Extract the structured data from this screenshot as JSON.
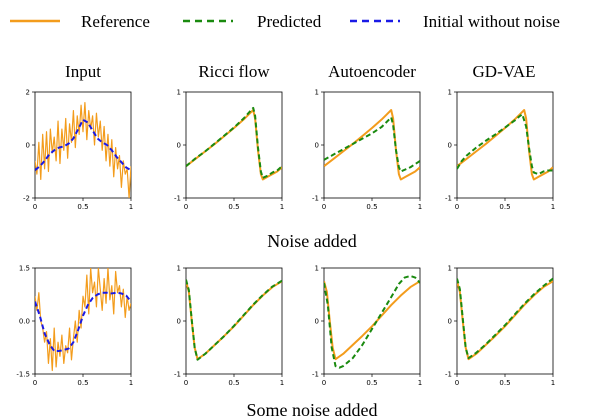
{
  "legend": {
    "entries": [
      {
        "label": "Reference",
        "color": "#f39c1c",
        "dash": "solid"
      },
      {
        "label": "Predicted",
        "color": "#1a8a0f",
        "dash": "dashed"
      },
      {
        "label": "Initial without noise",
        "color": "#1a1ae6",
        "dash": "dashed"
      }
    ]
  },
  "column_titles": [
    "Input",
    "Ricci flow",
    "Autoencoder",
    "GD-VAE"
  ],
  "row_titles": [
    "Noise added",
    "Some noise added"
  ],
  "chart_data": {
    "type": "line",
    "xlim": [
      0,
      1
    ],
    "x_ticks": [
      0,
      0.5,
      1
    ],
    "x_tick_labels": [
      "0",
      "0.5",
      "1"
    ],
    "rows": [
      {
        "title": "Noise added",
        "input": {
          "ylim": [
            -2,
            2
          ],
          "y_ticks": [
            -2,
            0,
            2
          ],
          "y_tick_labels": [
            "-2",
            "0",
            "2"
          ],
          "noisy": {
            "x": [
              0,
              0.02,
              0.04,
              0.06,
              0.08,
              0.1,
              0.12,
              0.14,
              0.16,
              0.18,
              0.2,
              0.22,
              0.24,
              0.26,
              0.28,
              0.3,
              0.32,
              0.34,
              0.36,
              0.38,
              0.4,
              0.42,
              0.44,
              0.46,
              0.48,
              0.5,
              0.52,
              0.54,
              0.56,
              0.58,
              0.6,
              0.62,
              0.64,
              0.66,
              0.68,
              0.7,
              0.72,
              0.74,
              0.76,
              0.78,
              0.8,
              0.82,
              0.84,
              0.86,
              0.88,
              0.9,
              0.92,
              0.94,
              0.96,
              0.98,
              1
            ],
            "y": [
              -0.6,
              -1.1,
              0.1,
              -1.3,
              0.4,
              -0.9,
              0.5,
              -1.0,
              0.6,
              -0.3,
              0.3,
              -0.6,
              0.9,
              -0.7,
              0.6,
              -0.2,
              1.0,
              -0.5,
              0.8,
              0.1,
              1.3,
              -0.1,
              1.1,
              0.4,
              1.5,
              0.5,
              1.6,
              0.2,
              1.3,
              0.6,
              1.1,
              0.0,
              1.2,
              0.3,
              0.9,
              -0.2,
              0.7,
              -0.6,
              0.4,
              -0.8,
              0.2,
              -1.2,
              -0.1,
              -0.9,
              -0.4,
              -1.6,
              -0.6,
              -1.1,
              -0.9,
              -2.0,
              -0.8
            ]
          },
          "initial": {
            "x": [
              0,
              0.05,
              0.1,
              0.15,
              0.2,
              0.25,
              0.3,
              0.35,
              0.4,
              0.45,
              0.5,
              0.55,
              0.6,
              0.65,
              0.7,
              0.75,
              0.8,
              0.85,
              0.9,
              0.95,
              1
            ],
            "y": [
              -0.95,
              -0.8,
              -0.6,
              -0.35,
              -0.2,
              -0.1,
              -0.05,
              0.05,
              0.25,
              0.6,
              0.95,
              0.85,
              0.55,
              0.25,
              0.1,
              0.0,
              -0.2,
              -0.45,
              -0.65,
              -0.85,
              -0.95
            ]
          }
        },
        "panels": [
          {
            "title": "Ricci flow",
            "ylim": [
              -1,
              1
            ],
            "y_ticks": [
              -1,
              0,
              1
            ],
            "y_tick_labels": [
              "-1",
              "0",
              "1"
            ],
            "reference": {
              "x": [
                0,
                0.1,
                0.2,
                0.3,
                0.4,
                0.5,
                0.6,
                0.65,
                0.7,
                0.72,
                0.75,
                0.78,
                0.8,
                0.85,
                0.9,
                0.95,
                1
              ],
              "y": [
                -0.4,
                -0.26,
                -0.12,
                0.02,
                0.17,
                0.32,
                0.48,
                0.57,
                0.66,
                0.5,
                -0.1,
                -0.55,
                -0.65,
                -0.6,
                -0.55,
                -0.5,
                -0.42
              ]
            },
            "predicted": {
              "x": [
                0,
                0.1,
                0.2,
                0.3,
                0.4,
                0.5,
                0.6,
                0.65,
                0.7,
                0.72,
                0.75,
                0.78,
                0.8,
                0.85,
                0.9,
                0.95,
                1
              ],
              "y": [
                -0.4,
                -0.25,
                -0.12,
                0.03,
                0.18,
                0.33,
                0.5,
                0.6,
                0.7,
                0.55,
                -0.05,
                -0.5,
                -0.62,
                -0.58,
                -0.52,
                -0.48,
                -0.4
              ]
            }
          },
          {
            "title": "Autoencoder",
            "ylim": [
              -1,
              1
            ],
            "y_ticks": [
              -1,
              0,
              1
            ],
            "y_tick_labels": [
              "-1",
              "0",
              "1"
            ],
            "reference": {
              "x": [
                0,
                0.1,
                0.2,
                0.3,
                0.4,
                0.5,
                0.6,
                0.65,
                0.7,
                0.72,
                0.75,
                0.78,
                0.8,
                0.85,
                0.9,
                0.95,
                1
              ],
              "y": [
                -0.4,
                -0.26,
                -0.12,
                0.02,
                0.17,
                0.32,
                0.48,
                0.57,
                0.66,
                0.5,
                -0.1,
                -0.55,
                -0.65,
                -0.6,
                -0.55,
                -0.5,
                -0.42
              ]
            },
            "predicted": {
              "x": [
                0,
                0.1,
                0.2,
                0.3,
                0.4,
                0.5,
                0.6,
                0.7,
                0.72,
                0.75,
                0.78,
                0.8,
                0.85,
                0.9,
                0.95,
                1
              ],
              "y": [
                -0.28,
                -0.18,
                -0.08,
                0.02,
                0.12,
                0.22,
                0.34,
                0.52,
                0.38,
                -0.1,
                -0.42,
                -0.5,
                -0.46,
                -0.42,
                -0.36,
                -0.3
              ]
            }
          },
          {
            "title": "GD-VAE",
            "ylim": [
              -1,
              1
            ],
            "y_ticks": [
              -1,
              0,
              1
            ],
            "y_tick_labels": [
              "-1",
              "0",
              "1"
            ],
            "reference": {
              "x": [
                0,
                0.1,
                0.2,
                0.3,
                0.4,
                0.5,
                0.6,
                0.65,
                0.7,
                0.72,
                0.75,
                0.78,
                0.8,
                0.85,
                0.9,
                0.95,
                1
              ],
              "y": [
                -0.4,
                -0.26,
                -0.12,
                0.02,
                0.17,
                0.32,
                0.48,
                0.57,
                0.66,
                0.5,
                -0.1,
                -0.55,
                -0.65,
                -0.6,
                -0.55,
                -0.5,
                -0.42
              ]
            },
            "predicted": {
              "x": [
                0,
                0.05,
                0.1,
                0.2,
                0.3,
                0.4,
                0.5,
                0.6,
                0.65,
                0.68,
                0.72,
                0.75,
                0.78,
                0.8,
                0.85,
                0.9,
                0.95,
                1
              ],
              "y": [
                -0.45,
                -0.3,
                -0.2,
                -0.05,
                0.08,
                0.2,
                0.33,
                0.46,
                0.54,
                0.58,
                0.35,
                -0.05,
                -0.4,
                -0.52,
                -0.55,
                -0.5,
                -0.48,
                -0.48
              ]
            }
          }
        ]
      },
      {
        "title": "Some noise added",
        "input": {
          "ylim": [
            -1.5,
            1.5
          ],
          "y_ticks": [
            -1.5,
            0,
            1.5
          ],
          "y_tick_labels": [
            "-1.5",
            "0.0",
            "1.5"
          ],
          "noisy": {
            "x": [
              0,
              0.02,
              0.04,
              0.06,
              0.08,
              0.1,
              0.12,
              0.14,
              0.16,
              0.18,
              0.2,
              0.22,
              0.24,
              0.26,
              0.28,
              0.3,
              0.32,
              0.34,
              0.36,
              0.38,
              0.4,
              0.42,
              0.44,
              0.46,
              0.48,
              0.5,
              0.52,
              0.54,
              0.56,
              0.58,
              0.6,
              0.62,
              0.64,
              0.66,
              0.68,
              0.7,
              0.72,
              0.74,
              0.76,
              0.78,
              0.8,
              0.82,
              0.84,
              0.86,
              0.88,
              0.9,
              0.92,
              0.94,
              0.96,
              0.98,
              1
            ],
            "y": [
              0.7,
              0.3,
              0.8,
              0.0,
              -0.2,
              -0.6,
              -0.3,
              -1.2,
              -0.5,
              -1.4,
              -0.2,
              -1.3,
              -0.6,
              -1.0,
              -0.4,
              -1.2,
              -0.7,
              -0.9,
              -0.2,
              -1.1,
              -0.5,
              0.0,
              -0.6,
              0.3,
              -0.2,
              0.7,
              0.4,
              1.3,
              0.2,
              1.5,
              0.8,
              1.1,
              0.4,
              1.5,
              0.9,
              0.3,
              1.2,
              0.5,
              1.5,
              0.6,
              1.0,
              0.2,
              1.4,
              0.8,
              1.0,
              0.4,
              0.9,
              0.1,
              0.7,
              0.3,
              0.5
            ]
          },
          "initial": {
            "x": [
              0,
              0.05,
              0.1,
              0.15,
              0.2,
              0.25,
              0.3,
              0.35,
              0.4,
              0.45,
              0.5,
              0.55,
              0.6,
              0.65,
              0.7,
              0.75,
              0.8,
              0.85,
              0.9,
              0.95,
              1
            ],
            "y": [
              0.55,
              0.15,
              -0.35,
              -0.65,
              -0.85,
              -0.85,
              -0.82,
              -0.78,
              -0.6,
              -0.25,
              0.15,
              0.45,
              0.65,
              0.75,
              0.8,
              0.8,
              0.78,
              0.8,
              0.78,
              0.72,
              0.55
            ]
          }
        },
        "panels": [
          {
            "title": "Ricci flow",
            "ylim": [
              -1,
              1
            ],
            "y_ticks": [
              -1,
              0,
              1
            ],
            "y_tick_labels": [
              "-1",
              "0",
              "1"
            ],
            "reference": {
              "x": [
                0,
                0.03,
                0.06,
                0.09,
                0.12,
                0.2,
                0.3,
                0.4,
                0.5,
                0.6,
                0.7,
                0.8,
                0.9,
                1
              ],
              "y": [
                0.75,
                0.55,
                0.0,
                -0.5,
                -0.72,
                -0.62,
                -0.45,
                -0.28,
                -0.1,
                0.1,
                0.3,
                0.48,
                0.64,
                0.75
              ]
            },
            "predicted": {
              "x": [
                0,
                0.03,
                0.06,
                0.09,
                0.12,
                0.2,
                0.3,
                0.4,
                0.5,
                0.6,
                0.7,
                0.8,
                0.9,
                1
              ],
              "y": [
                0.78,
                0.58,
                0.02,
                -0.5,
                -0.73,
                -0.62,
                -0.45,
                -0.28,
                -0.09,
                0.11,
                0.31,
                0.49,
                0.65,
                0.76
              ]
            }
          },
          {
            "title": "Autoencoder",
            "ylim": [
              -1,
              1
            ],
            "y_ticks": [
              -1,
              0,
              1
            ],
            "y_tick_labels": [
              "-1",
              "0",
              "1"
            ],
            "reference": {
              "x": [
                0,
                0.03,
                0.06,
                0.09,
                0.12,
                0.2,
                0.3,
                0.4,
                0.5,
                0.6,
                0.7,
                0.8,
                0.9,
                1
              ],
              "y": [
                0.75,
                0.55,
                0.0,
                -0.5,
                -0.72,
                -0.62,
                -0.45,
                -0.28,
                -0.1,
                0.1,
                0.3,
                0.48,
                0.64,
                0.75
              ]
            },
            "predicted": {
              "x": [
                0,
                0.04,
                0.08,
                0.12,
                0.16,
                0.2,
                0.3,
                0.4,
                0.5,
                0.6,
                0.7,
                0.78,
                0.84,
                0.9,
                0.95,
                1
              ],
              "y": [
                0.72,
                0.3,
                -0.5,
                -0.85,
                -0.88,
                -0.85,
                -0.7,
                -0.45,
                -0.15,
                0.15,
                0.45,
                0.7,
                0.82,
                0.85,
                0.82,
                0.72
              ]
            }
          },
          {
            "title": "GD-VAE",
            "ylim": [
              -1,
              1
            ],
            "y_ticks": [
              -1,
              0,
              1
            ],
            "y_tick_labels": [
              "-1",
              "0",
              "1"
            ],
            "reference": {
              "x": [
                0,
                0.03,
                0.06,
                0.09,
                0.12,
                0.2,
                0.3,
                0.4,
                0.5,
                0.6,
                0.7,
                0.8,
                0.9,
                1
              ],
              "y": [
                0.75,
                0.55,
                0.0,
                -0.5,
                -0.72,
                -0.62,
                -0.45,
                -0.28,
                -0.1,
                0.1,
                0.3,
                0.48,
                0.64,
                0.75
              ]
            },
            "predicted": {
              "x": [
                0,
                0.03,
                0.06,
                0.09,
                0.12,
                0.2,
                0.3,
                0.4,
                0.5,
                0.6,
                0.7,
                0.8,
                0.9,
                1
              ],
              "y": [
                0.8,
                0.6,
                0.05,
                -0.5,
                -0.7,
                -0.6,
                -0.44,
                -0.26,
                -0.08,
                0.12,
                0.32,
                0.5,
                0.66,
                0.8
              ]
            }
          }
        ]
      }
    ]
  }
}
